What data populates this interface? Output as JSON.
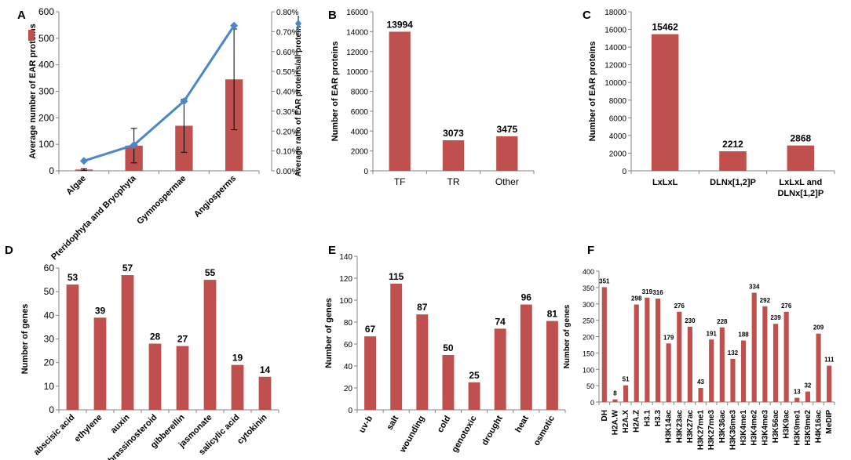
{
  "chart_data": [
    {
      "panel": "A",
      "type": "bar",
      "categories": [
        "Algae",
        "Pteridophyta and Bryophyta",
        "Gymnospermae",
        "Angiosperms"
      ],
      "series": [
        {
          "name": "Average number of EAR proteins",
          "values": [
            5,
            95,
            170,
            345
          ],
          "errors": [
            3,
            65,
            100,
            190
          ],
          "color": "#c0504d"
        },
        {
          "name": "Average ratio of EAR proteins/all proteins",
          "type": "line",
          "axis": "right",
          "values": [
            0.05,
            0.13,
            0.35,
            0.73
          ],
          "color": "#4a86c8"
        }
      ],
      "ylabel": "Average number of EAR proteins",
      "y2label": "Average ratio of EAR proteins/all proteins",
      "ylim": [
        0,
        600
      ],
      "y2lim": [
        0,
        0.8
      ],
      "yticks": [
        "0",
        "100",
        "200",
        "300",
        "400",
        "500",
        "600"
      ],
      "y2ticks": [
        "0.00%",
        "0.10%",
        "0.20%",
        "0.30%",
        "0.40%",
        "0.50%",
        "0.60%",
        "0.70%",
        "0.80%"
      ]
    },
    {
      "panel": "B",
      "type": "bar",
      "categories": [
        "TF",
        "TR",
        "Other"
      ],
      "values": [
        13994,
        3073,
        3475
      ],
      "labels": [
        "13994",
        "3073",
        "3475"
      ],
      "ylabel": "Number of EAR proteins",
      "ylim": [
        0,
        16000
      ],
      "yticks": [
        "0",
        "2000",
        "4000",
        "6000",
        "8000",
        "10000",
        "12000",
        "14000",
        "16000"
      ]
    },
    {
      "panel": "C",
      "type": "bar",
      "categories": [
        "LxLxL",
        "DLNx[1,2]P",
        "LxLxL and DLNx[1,2]P"
      ],
      "values": [
        15462,
        2212,
        2868
      ],
      "labels": [
        "15462",
        "2212",
        "2868"
      ],
      "ylabel": "Number of EAR proteins",
      "ylim": [
        0,
        18000
      ],
      "yticks": [
        "0",
        "2000",
        "4000",
        "6000",
        "8000",
        "10000",
        "12000",
        "14000",
        "16000",
        "18000"
      ]
    },
    {
      "panel": "D",
      "type": "bar",
      "categories": [
        "abscisic acid",
        "ethylene",
        "auxin",
        "brassinosteroid",
        "gibberellin",
        "jasmonate",
        "salicylic acid",
        "cytokinin"
      ],
      "values": [
        53,
        39,
        57,
        28,
        27,
        55,
        19,
        14
      ],
      "labels": [
        "53",
        "39",
        "57",
        "28",
        "27",
        "55",
        "19",
        "14"
      ],
      "ylabel": "Number of genes",
      "ylim": [
        0,
        60
      ],
      "yticks": [
        "0",
        "10",
        "20",
        "30",
        "40",
        "50",
        "60"
      ]
    },
    {
      "panel": "E",
      "type": "bar",
      "categories": [
        "uv-b",
        "salt",
        "wounding",
        "cold",
        "genotoxic",
        "drought",
        "heat",
        "osmotic"
      ],
      "values": [
        67,
        115,
        87,
        50,
        25,
        74,
        96,
        81
      ],
      "labels": [
        "67",
        "115",
        "87",
        "50",
        "25",
        "74",
        "96",
        "81"
      ],
      "ylabel": "Number of genes",
      "ylim": [
        0,
        140
      ],
      "yticks": [
        "0",
        "20",
        "40",
        "60",
        "80",
        "100",
        "120",
        "140"
      ]
    },
    {
      "panel": "F",
      "type": "bar",
      "categories": [
        "DH",
        "H2A.W",
        "H2A.X",
        "H2A.Z",
        "H3.1",
        "H3.3",
        "H3K14ac",
        "H3K23ac",
        "H3K27ac",
        "H3K27me1",
        "H3K27me3",
        "H3K36ac",
        "H3K36me3",
        "H3K4me1",
        "H3K4me2",
        "H3K4me3",
        "H3K56ac",
        "H3K9ac",
        "H3K9me1",
        "H3K9me2",
        "H4K16ac",
        "MeDIP"
      ],
      "values": [
        351,
        8,
        51,
        298,
        319,
        316,
        179,
        276,
        230,
        43,
        191,
        228,
        132,
        188,
        334,
        292,
        239,
        276,
        13,
        32,
        209,
        111
      ],
      "labels": [
        "351",
        "8",
        "51",
        "298",
        "319",
        "316",
        "179",
        "276",
        "230",
        "43",
        "191",
        "228",
        "132",
        "188",
        "334",
        "292",
        "239",
        "276",
        "13",
        "32",
        "209",
        "111"
      ],
      "ylabel": "Number of genes",
      "ylim": [
        0,
        400
      ],
      "yticks": [
        "0",
        "50",
        "100",
        "150",
        "200",
        "250",
        "300",
        "350",
        "400"
      ]
    }
  ]
}
